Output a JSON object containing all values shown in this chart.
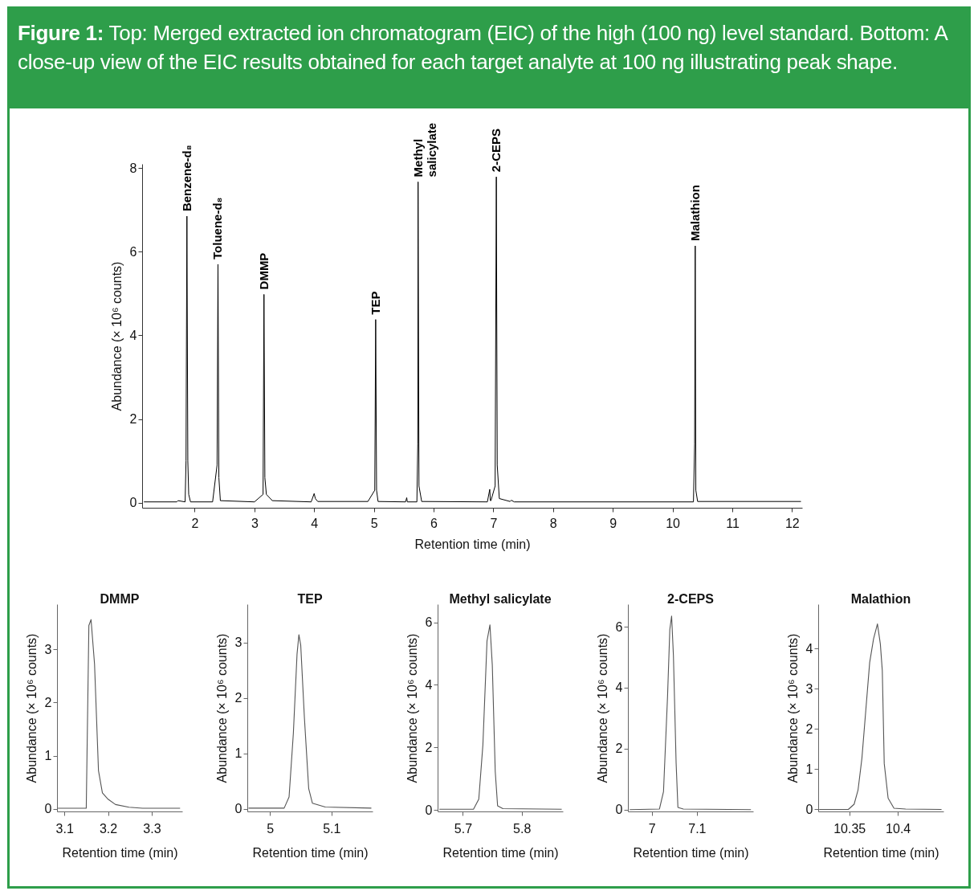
{
  "chart_data": [
    {
      "type": "line",
      "title": "Figure 1: Top: Merged extracted ion chromatogram (EIC) of the high (100 ng) level standard. Bottom: A close-up view of the EIC results obtained for each target analyte at 100 ng illustrating peak shape.",
      "xlabel": "Retention time (min)",
      "ylabel": "Abundance (× 10⁶ counts)",
      "xlim": [
        1.12,
        12.17
      ],
      "ylim": [
        -0.12,
        8.1
      ],
      "xticks": [
        2,
        3,
        4,
        5,
        6,
        7,
        8,
        9,
        10,
        11,
        12
      ],
      "yticks": [
        0,
        2,
        4,
        6,
        8
      ],
      "series": [
        {
          "color": "#000000",
          "x": [
            1.15,
            1.7,
            1.72,
            1.84,
            1.855,
            1.87,
            1.885,
            1.9,
            1.93,
            2.3,
            2.375,
            2.39,
            2.405,
            2.43,
            3.0,
            3.145,
            3.16,
            3.175,
            3.2,
            3.3,
            3.95,
            4.0,
            4.02,
            4.06,
            4.9,
            5.015,
            5.03,
            5.045,
            5.07,
            5.53,
            5.55,
            5.56,
            5.72,
            5.735,
            5.74,
            5.755,
            5.8,
            6.9,
            6.94,
            6.95,
            6.96,
            7.03,
            7.05,
            7.065,
            7.1,
            7.28,
            7.3,
            7.35,
            10.35,
            10.37,
            10.38,
            10.39,
            10.42,
            12.15
          ],
          "values": [
            0.02,
            0.02,
            0.05,
            0.02,
            1.0,
            6.85,
            1.0,
            0.2,
            0.02,
            0.02,
            0.9,
            5.7,
            0.6,
            0.05,
            0.02,
            0.2,
            4.98,
            0.6,
            0.2,
            0.05,
            0.02,
            0.22,
            0.1,
            0.03,
            0.03,
            0.3,
            4.38,
            0.3,
            0.03,
            0.02,
            0.12,
            0.02,
            0.02,
            1.4,
            7.67,
            0.4,
            0.03,
            0.02,
            0.32,
            0.05,
            0.05,
            0.4,
            7.79,
            0.9,
            0.1,
            0.03,
            0.06,
            0.02,
            0.02,
            1.4,
            6.14,
            0.3,
            0.03,
            0.03
          ]
        }
      ],
      "annotations": [
        {
          "text": "Benzene-d₈",
          "x": 1.87,
          "y": 6.85
        },
        {
          "text": "Toluene-d₈",
          "x": 2.39,
          "y": 5.7
        },
        {
          "text": "DMMP",
          "x": 3.16,
          "y": 4.98
        },
        {
          "text": "TEP",
          "x": 5.03,
          "y": 4.38
        },
        {
          "text": "Methyl\nsalicylate",
          "x": 5.74,
          "y": 7.67
        },
        {
          "text": "2-CEPS",
          "x": 7.05,
          "y": 7.79
        },
        {
          "text": "Malathion",
          "x": 10.38,
          "y": 6.14
        }
      ]
    },
    {
      "type": "line",
      "title": "DMMP",
      "xlabel": "Retention time (min)",
      "ylabel": "Abundance (× 10⁶ counts)",
      "xlim": [
        3.083,
        3.37
      ],
      "ylim": [
        -0.05,
        3.85
      ],
      "xticks": [
        3.1,
        3.2,
        3.3
      ],
      "yticks": [
        0,
        1,
        2,
        3
      ],
      "series": [
        {
          "color": "#555555",
          "x": [
            3.085,
            3.15,
            3.156,
            3.161,
            3.169,
            3.178,
            3.187,
            3.2,
            3.217,
            3.248,
            3.279,
            3.365
          ],
          "values": [
            0.01,
            0.01,
            3.45,
            3.56,
            2.72,
            0.72,
            0.3,
            0.18,
            0.08,
            0.03,
            0.01,
            0.01
          ]
        }
      ]
    },
    {
      "type": "line",
      "title": "TEP",
      "xlabel": "Retention time (min)",
      "ylabel": "Abundance (× 10⁶ counts)",
      "xlim": [
        4.963,
        5.167
      ],
      "ylim": [
        -0.05,
        3.69
      ],
      "xticks": [
        5,
        5.1
      ],
      "yticks": [
        0,
        1,
        2,
        3
      ],
      "series": [
        {
          "color": "#555555",
          "x": [
            4.965,
            5.023,
            5.031,
            5.038,
            5.044,
            5.047,
            5.05,
            5.056,
            5.063,
            5.069,
            5.09,
            5.165
          ],
          "values": [
            0.01,
            0.01,
            0.21,
            1.36,
            2.79,
            3.14,
            2.95,
            1.64,
            0.36,
            0.1,
            0.03,
            0.01
          ]
        }
      ]
    },
    {
      "type": "line",
      "title": "Methyl salicylate",
      "xlabel": "Retention time (min)",
      "ylabel": "Abundance (× 10⁶ counts)",
      "xlim": [
        5.657,
        5.87
      ],
      "ylim": [
        -0.05,
        6.58
      ],
      "xticks": [
        5.7,
        5.8
      ],
      "yticks": [
        0,
        2,
        4,
        6
      ],
      "series": [
        {
          "color": "#555555",
          "x": [
            5.66,
            5.718,
            5.727,
            5.734,
            5.741,
            5.746,
            5.75,
            5.755,
            5.759,
            5.768,
            5.868
          ],
          "values": [
            0.02,
            0.02,
            0.34,
            2.08,
            5.4,
            5.92,
            4.63,
            1.23,
            0.13,
            0.04,
            0.02
          ]
        }
      ]
    },
    {
      "type": "line",
      "title": "2-CEPS",
      "xlabel": "Retention time (min)",
      "ylabel": "Abundance (× 10⁶ counts)",
      "xlim": [
        6.947,
        7.225
      ],
      "ylim": [
        -0.06,
        6.74
      ],
      "xticks": [
        7,
        7.1
      ],
      "yticks": [
        0,
        2,
        4,
        6
      ],
      "series": [
        {
          "color": "#555555",
          "x": [
            6.951,
            7.017,
            7.026,
            7.035,
            7.04,
            7.044,
            7.048,
            7.054,
            7.058,
            7.07,
            7.22
          ],
          "values": [
            0.0,
            0.02,
            0.59,
            3.73,
            5.91,
            6.35,
            5.06,
            1.53,
            0.07,
            0.02,
            0.0
          ]
        }
      ]
    },
    {
      "type": "line",
      "title": "Malathion",
      "xlabel": "Retention time (min)",
      "ylabel": "Abundance (× 10⁶ counts)",
      "xlim": [
        10.318,
        10.447
      ],
      "ylim": [
        -0.05,
        5.1
      ],
      "xticks": [
        10.35,
        10.4
      ],
      "yticks": [
        0,
        1,
        2,
        3,
        4
      ],
      "series": [
        {
          "color": "#555555",
          "x": [
            10.319,
            10.349,
            10.355,
            10.359,
            10.363,
            10.367,
            10.371,
            10.375,
            10.379,
            10.382,
            10.384,
            10.386,
            10.39,
            10.396,
            10.408,
            10.445
          ],
          "values": [
            0.0,
            0.0,
            0.13,
            0.48,
            1.27,
            2.46,
            3.65,
            4.24,
            4.61,
            4.11,
            3.45,
            1.14,
            0.28,
            0.03,
            0.01,
            0.0
          ]
        }
      ]
    }
  ]
}
